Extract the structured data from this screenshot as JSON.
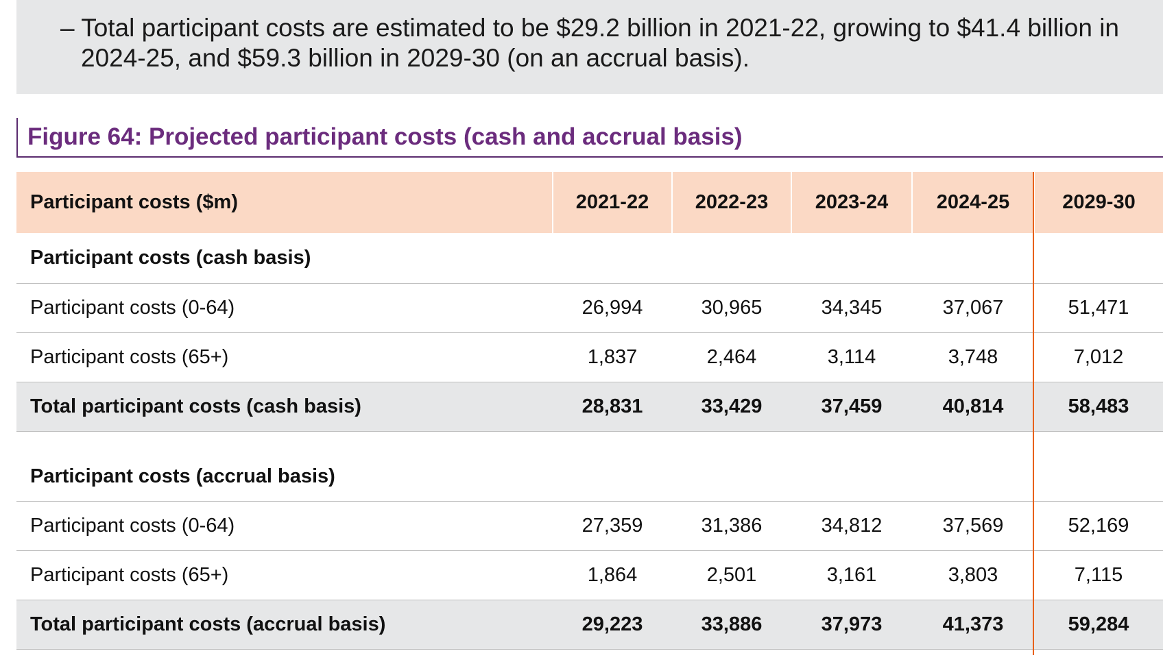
{
  "callout": {
    "line1": "– Total participant costs are estimated to be $29.2 billion in 2021-22, growing to $41.4 billion in",
    "line2": "2024-25, and $59.3 billion in 2029-30 (on an accrual basis)."
  },
  "figure": {
    "title": "Figure 64: Projected participant costs (cash and accrual basis)"
  },
  "table": {
    "headers": [
      "Participant costs ($m)",
      "2021-22",
      "2022-23",
      "2023-24",
      "2024-25",
      "2029-30"
    ],
    "cash": {
      "section_label": "Participant costs (cash basis)",
      "rows": [
        {
          "label": "Participant costs (0-64)",
          "values": [
            "26,994",
            "30,965",
            "34,345",
            "37,067",
            "51,471"
          ]
        },
        {
          "label": "Participant costs (65+)",
          "values": [
            "1,837",
            "2,464",
            "3,114",
            "3,748",
            "7,012"
          ]
        }
      ],
      "total": {
        "label": "Total participant costs (cash basis)",
        "values": [
          "28,831",
          "33,429",
          "37,459",
          "40,814",
          "58,483"
        ]
      }
    },
    "accrual": {
      "section_label": "Participant costs (accrual basis)",
      "rows": [
        {
          "label": "Participant costs (0-64)",
          "values": [
            "27,359",
            "31,386",
            "34,812",
            "37,569",
            "52,169"
          ]
        },
        {
          "label": "Participant costs (65+)",
          "values": [
            "1,864",
            "2,501",
            "3,161",
            "3,803",
            "7,115"
          ]
        }
      ],
      "total": {
        "label": "Total participant costs (accrual basis)",
        "values": [
          "29,223",
          "33,886",
          "37,973",
          "41,373",
          "59,284"
        ]
      }
    }
  },
  "colors": {
    "title_purple": "#6b2c7d",
    "header_peach": "#fbd9c5",
    "total_grey": "#e6e7e8",
    "divider_orange": "#e8611a"
  }
}
